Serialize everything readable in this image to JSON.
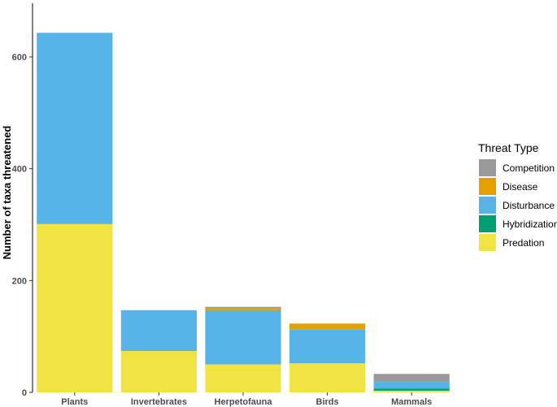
{
  "chart_data": {
    "type": "bar",
    "stacked": true,
    "title": "",
    "xlabel": "",
    "ylabel": "Number of taxa threatened",
    "ylim": [
      0,
      640
    ],
    "yticks": [
      0,
      200,
      400,
      600
    ],
    "grid": false,
    "categories": [
      "Plants",
      "Invertebrates",
      "Herpetofauna",
      "Birds",
      "Mammals"
    ],
    "series": [
      {
        "name": "Predation",
        "color": "#F0E442",
        "values": [
          301,
          74,
          50,
          52,
          3
        ]
      },
      {
        "name": "Hybridization",
        "color": "#009E73",
        "values": [
          0,
          0,
          0,
          0,
          4
        ]
      },
      {
        "name": "Disturbance",
        "color": "#56B4E9",
        "values": [
          342,
          73,
          96,
          61,
          12
        ]
      },
      {
        "name": "Disease",
        "color": "#E69F00",
        "values": [
          0,
          0,
          5,
          10,
          0
        ]
      },
      {
        "name": "Competition",
        "color": "#999999",
        "values": [
          0,
          0,
          2,
          0,
          14
        ]
      }
    ],
    "legend": {
      "title": "Threat Type",
      "position": "right",
      "items": [
        "Competition",
        "Disease",
        "Disturbance",
        "Hybridization",
        "Predation"
      ]
    }
  }
}
